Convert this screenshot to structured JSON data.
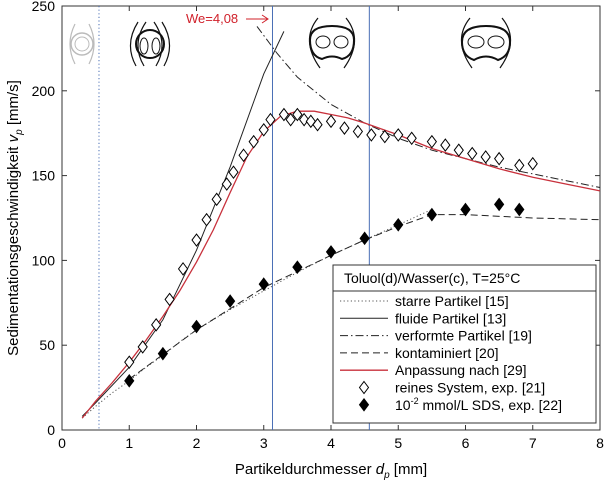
{
  "chart_data": {
    "type": "scatter",
    "xlabel_main": "Partikeldurchmesser ",
    "xlabel_sym": "d",
    "xlabel_sub": "p",
    "xlabel_unit": " [mm]",
    "ylabel_main": "Sedimentationsgeschwindigkeit ",
    "ylabel_sym": "v",
    "ylabel_sub": "p",
    "ylabel_unit": " [mm/s]",
    "xlim": [
      0,
      8
    ],
    "ylim": [
      0,
      250
    ],
    "xticks": [
      "0",
      "1",
      "2",
      "3",
      "4",
      "5",
      "6",
      "7",
      "8"
    ],
    "yticks": [
      "0",
      "50",
      "100",
      "150",
      "200",
      "250"
    ],
    "grid": false,
    "legend_position": "bottom-right",
    "legend_title": "Toluol(d)/Wasser(c), T=25°C",
    "annotation": {
      "text": "We=4,08",
      "x": 3.13,
      "color": "#d0202a"
    },
    "vertical_lines": [
      {
        "x": 0.55,
        "style": "dotted",
        "color": "#4a6fb5"
      },
      {
        "x": 3.13,
        "style": "solid",
        "color": "#4a6fb5"
      },
      {
        "x": 4.57,
        "style": "solid",
        "color": "#4a6fb5"
      }
    ],
    "series": [
      {
        "name": "starre Partikel [15]",
        "kind": "line",
        "dash": "dotted",
        "color": "#555555",
        "x": [
          0.3,
          0.5,
          0.75,
          1.0,
          1.25,
          1.5,
          1.75,
          2.0,
          2.5,
          3.0,
          3.5,
          4.0,
          4.5,
          5.0,
          5.5
        ],
        "y": [
          7,
          14,
          22,
          29,
          37,
          44,
          52,
          59,
          71,
          82,
          93,
          103,
          112,
          121,
          130
        ]
      },
      {
        "name": "fluide Partikel [13]",
        "kind": "line",
        "dash": "solid",
        "color": "#222222",
        "x": [
          0.3,
          0.5,
          1.0,
          1.5,
          2.0,
          2.5,
          3.0,
          3.3
        ],
        "y": [
          8,
          16,
          37,
          65,
          106,
          155,
          210,
          235
        ]
      },
      {
        "name": "verformte Partikel [19]",
        "kind": "line",
        "dash": "dashdot",
        "color": "#222222",
        "x": [
          2.9,
          3.2,
          3.5,
          4.0,
          4.5,
          5.0,
          5.5,
          6.0,
          6.5,
          7.0,
          7.5,
          8.0
        ],
        "y": [
          238,
          222,
          208,
          192,
          181,
          172,
          165,
          160,
          155,
          151,
          147,
          143
        ]
      },
      {
        "name": "kontaminiert [20]",
        "kind": "line",
        "dash": "dashed",
        "color": "#222222",
        "x": [
          1.0,
          2.0,
          3.0,
          4.0,
          4.5,
          5.0,
          5.5,
          6.0,
          7.0,
          8.0
        ],
        "y": [
          30,
          59,
          84,
          103,
          112,
          120,
          127,
          127,
          125,
          124
        ]
      },
      {
        "name": "Anpassung nach [29]",
        "kind": "line",
        "dash": "solid",
        "color": "#c8313c",
        "x": [
          0.3,
          0.5,
          0.75,
          1.0,
          1.25,
          1.5,
          1.75,
          2.0,
          2.25,
          2.5,
          2.75,
          3.0,
          3.25,
          3.5,
          3.75,
          4.0,
          4.25,
          4.5,
          5.0,
          5.5,
          6.0,
          6.5,
          7.0,
          7.5,
          8.0
        ],
        "y": [
          7,
          17,
          28,
          40,
          53,
          67,
          82,
          99,
          118,
          140,
          161,
          176,
          185,
          188,
          188,
          186,
          184,
          181,
          174,
          166,
          160,
          154,
          149,
          145,
          141
        ]
      },
      {
        "name": "reines System, exp. [21]",
        "kind": "markers",
        "marker": "diamond-open",
        "x": [
          1.0,
          1.2,
          1.4,
          1.6,
          1.8,
          2.0,
          2.15,
          2.3,
          2.45,
          2.55,
          2.7,
          2.85,
          3.0,
          3.1,
          3.3,
          3.4,
          3.5,
          3.6,
          3.7,
          3.8,
          4.0,
          4.2,
          4.4,
          4.6,
          4.8,
          5.0,
          5.2,
          5.5,
          5.7,
          5.9,
          6.1,
          6.3,
          6.5,
          6.8,
          7.0
        ],
        "y": [
          40,
          49,
          62,
          77,
          95,
          112,
          124,
          136,
          145,
          152,
          162,
          170,
          177,
          183,
          186,
          183,
          186,
          183,
          182,
          180,
          182,
          178,
          176,
          174,
          173,
          174,
          172,
          170,
          168,
          165,
          163,
          161,
          160,
          156,
          157
        ]
      },
      {
        "name_pre": "10",
        "name_sup": "-2",
        "name": " mmol/L SDS, exp. [22]",
        "kind": "markers",
        "marker": "diamond-filled",
        "x": [
          1.0,
          1.5,
          2.0,
          2.5,
          3.0,
          3.5,
          4.0,
          4.5,
          5.0,
          5.5,
          6.0,
          6.5,
          6.8
        ],
        "y": [
          29,
          45,
          61,
          76,
          86,
          96,
          105,
          113,
          121,
          127,
          130,
          133,
          130
        ]
      }
    ]
  }
}
